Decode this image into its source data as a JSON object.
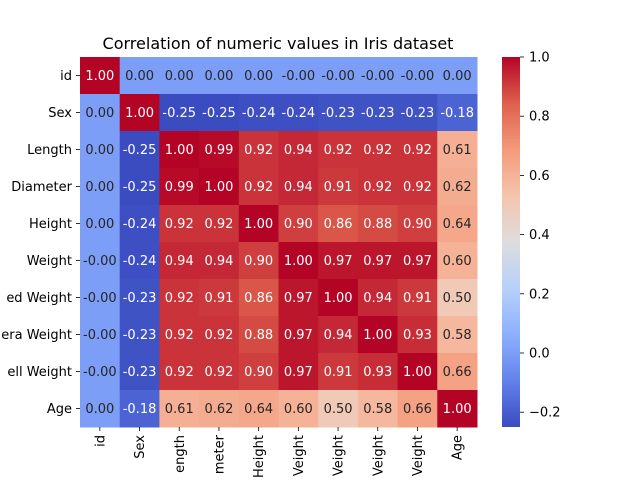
{
  "chart_data": {
    "type": "heatmap",
    "title": "Correlation of numeric values in Iris dataset",
    "xlabel": "",
    "ylabel": "",
    "row_labels": [
      "id",
      "Sex",
      "Length",
      "Diameter",
      "Height",
      "Weight",
      "ed Weight",
      "era Weight",
      "ell Weight",
      "Age"
    ],
    "col_labels": [
      "id",
      "Sex",
      "ength",
      "meter",
      "Height",
      "Veight",
      "Veight",
      "Veight",
      "Veight",
      "Age"
    ],
    "values": [
      [
        1.0,
        0.0,
        0.0,
        0.0,
        0.0,
        -0.0,
        -0.0,
        -0.0,
        -0.0,
        0.0
      ],
      [
        0.0,
        1.0,
        -0.25,
        -0.25,
        -0.24,
        -0.24,
        -0.23,
        -0.23,
        -0.23,
        -0.18
      ],
      [
        0.0,
        -0.25,
        1.0,
        0.99,
        0.92,
        0.94,
        0.92,
        0.92,
        0.92,
        0.61
      ],
      [
        0.0,
        -0.25,
        0.99,
        1.0,
        0.92,
        0.94,
        0.91,
        0.92,
        0.92,
        0.62
      ],
      [
        0.0,
        -0.24,
        0.92,
        0.92,
        1.0,
        0.9,
        0.86,
        0.88,
        0.9,
        0.64
      ],
      [
        -0.0,
        -0.24,
        0.94,
        0.94,
        0.9,
        1.0,
        0.97,
        0.97,
        0.97,
        0.6
      ],
      [
        -0.0,
        -0.23,
        0.92,
        0.91,
        0.86,
        0.97,
        1.0,
        0.94,
        0.91,
        0.5
      ],
      [
        -0.0,
        -0.23,
        0.92,
        0.92,
        0.88,
        0.97,
        0.94,
        1.0,
        0.93,
        0.58
      ],
      [
        -0.0,
        -0.23,
        0.92,
        0.92,
        0.9,
        0.97,
        0.91,
        0.93,
        1.0,
        0.66
      ],
      [
        0.0,
        -0.18,
        0.61,
        0.62,
        0.64,
        0.6,
        0.5,
        0.58,
        0.66,
        1.0
      ]
    ],
    "colormap": "coolwarm",
    "vmin": -0.25,
    "vmax": 1.0,
    "colorbar_ticks": [
      -0.2,
      0.0,
      0.2,
      0.4,
      0.6,
      0.8,
      1.0
    ],
    "colorbar_tick_labels": [
      "−0.2",
      "0.0",
      "0.2",
      "0.4",
      "0.6",
      "0.8",
      "1.0"
    ],
    "grid": false,
    "annotated": true
  }
}
